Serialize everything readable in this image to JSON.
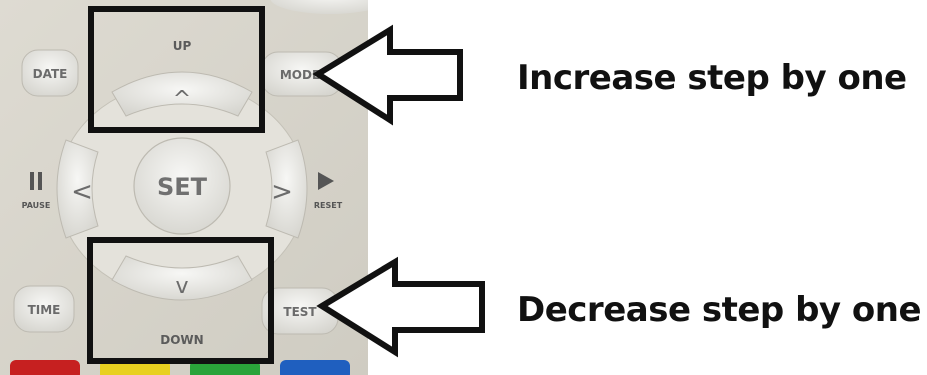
{
  "remote": {
    "buttons": {
      "up": "UP",
      "down": "DOWN",
      "set": "SET",
      "date": "DATE",
      "time": "TIME",
      "pause": "PAUSE",
      "reset": "RESET",
      "mode": "MODE",
      "test": "TEST",
      "left_glyph": "<",
      "right_glyph": ">",
      "up_glyph": "^",
      "down_glyph": "v"
    },
    "colors": {
      "body": "#d9d6cc",
      "key": "#ececec",
      "key_text": "#6b6b6b",
      "bottom_strip": [
        "#c62020",
        "#e8d020",
        "#2aa33a",
        "#1f5fbf"
      ]
    }
  },
  "annotations": {
    "up_label": "Increase step by one",
    "down_label": "Decrease step by one",
    "box_color": "#111111",
    "arrow_icon": "left-arrow-outline-icon"
  }
}
